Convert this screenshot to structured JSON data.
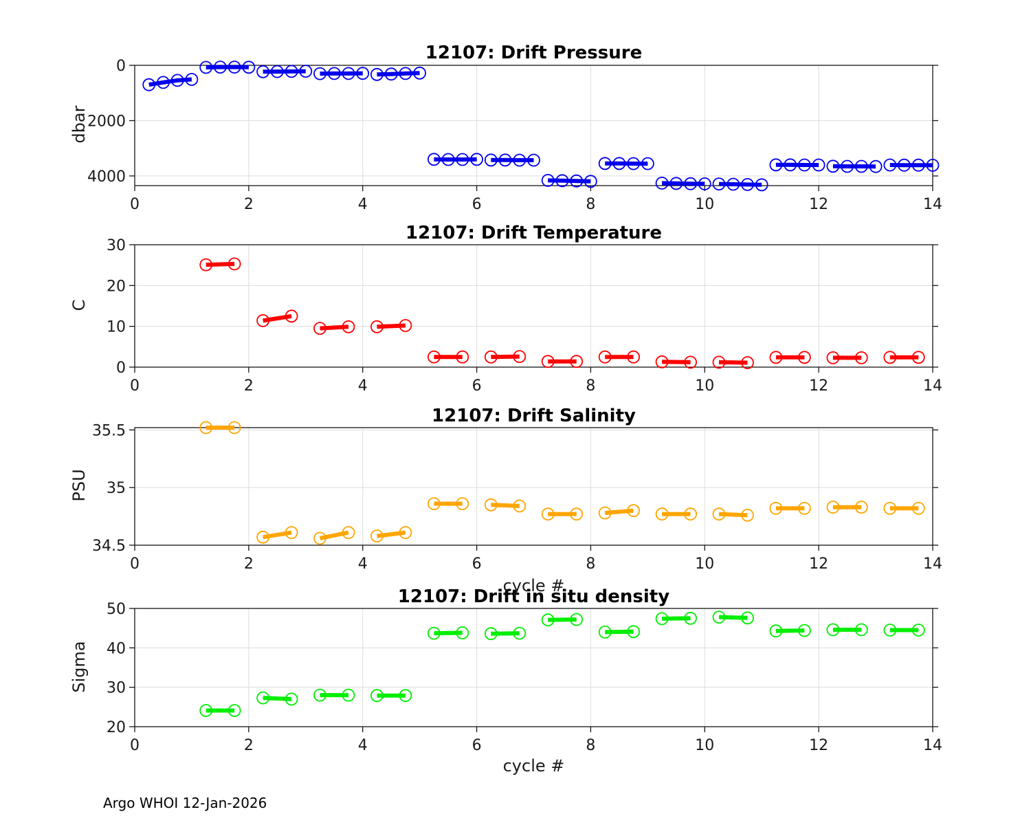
{
  "page": {
    "footer": "Argo WHOI 12-Jan-2026",
    "background": "#ffffff"
  },
  "chart_data": [
    {
      "type": "line",
      "title": "12107: Drift Pressure",
      "ylabel": "dbar",
      "xlabel": "",
      "color": "#0000EE",
      "marker": "circle",
      "grid": true,
      "xlim": [
        0,
        14
      ],
      "ylim": [
        0,
        4350
      ],
      "y_reversed": true,
      "xticks": [
        0,
        2,
        4,
        6,
        8,
        10,
        12,
        14
      ],
      "xtick_labels": [
        "0",
        "2",
        "4",
        "6",
        "8",
        "10",
        "12",
        "14"
      ],
      "yticks": [
        0,
        2000,
        4000
      ],
      "ytick_labels": [
        "0",
        "2000",
        "4000"
      ],
      "segments": [
        {
          "x": [
            0.25,
            0.5,
            0.75,
            1.0
          ],
          "y": [
            700,
            620,
            545,
            510
          ]
        },
        {
          "x": [
            1.25,
            1.5,
            1.75,
            2.0
          ],
          "y": [
            75,
            65,
            65,
            70
          ]
        },
        {
          "x": [
            2.25,
            2.5,
            2.75,
            3.0
          ],
          "y": [
            230,
            225,
            220,
            215
          ]
        },
        {
          "x": [
            3.25,
            3.5,
            3.75,
            4.0
          ],
          "y": [
            300,
            295,
            295,
            290
          ]
        },
        {
          "x": [
            4.25,
            4.5,
            4.75,
            5.0
          ],
          "y": [
            330,
            315,
            295,
            280
          ]
        },
        {
          "x": [
            5.25,
            5.5,
            5.75,
            6.0
          ],
          "y": [
            3400,
            3405,
            3405,
            3400
          ]
        },
        {
          "x": [
            6.25,
            6.5,
            6.75,
            7.0
          ],
          "y": [
            3425,
            3425,
            3430,
            3430
          ]
        },
        {
          "x": [
            7.25,
            7.5,
            7.75,
            8.0
          ],
          "y": [
            4160,
            4170,
            4180,
            4195
          ]
        },
        {
          "x": [
            8.25,
            8.5,
            8.75,
            9.0
          ],
          "y": [
            3550,
            3550,
            3555,
            3555
          ]
        },
        {
          "x": [
            9.25,
            9.5,
            9.75,
            10.0
          ],
          "y": [
            4260,
            4270,
            4280,
            4285
          ]
        },
        {
          "x": [
            10.25,
            10.5,
            10.75,
            11.0
          ],
          "y": [
            4290,
            4300,
            4310,
            4320
          ]
        },
        {
          "x": [
            11.25,
            11.5,
            11.75,
            12.0
          ],
          "y": [
            3600,
            3600,
            3605,
            3605
          ]
        },
        {
          "x": [
            12.25,
            12.5,
            12.75,
            13.0
          ],
          "y": [
            3650,
            3655,
            3655,
            3660
          ]
        },
        {
          "x": [
            13.25,
            13.5,
            13.75,
            14.0
          ],
          "y": [
            3605,
            3610,
            3610,
            3615
          ]
        }
      ]
    },
    {
      "type": "line",
      "title": "12107: Drift Temperature",
      "ylabel": "C",
      "xlabel": "",
      "color": "#FF0000",
      "marker": "circle",
      "grid": true,
      "xlim": [
        0,
        14
      ],
      "ylim": [
        0,
        30
      ],
      "y_reversed": false,
      "xticks": [
        0,
        2,
        4,
        6,
        8,
        10,
        12,
        14
      ],
      "xtick_labels": [
        "0",
        "2",
        "4",
        "6",
        "8",
        "10",
        "12",
        "14"
      ],
      "yticks": [
        0,
        10,
        20,
        30
      ],
      "ytick_labels": [
        "0",
        "10",
        "20",
        "30"
      ],
      "segments": [
        {
          "x": [
            1.25,
            1.75
          ],
          "y": [
            25.1,
            25.3
          ]
        },
        {
          "x": [
            2.25,
            2.75
          ],
          "y": [
            11.4,
            12.5
          ]
        },
        {
          "x": [
            3.25,
            3.75
          ],
          "y": [
            9.5,
            9.9
          ]
        },
        {
          "x": [
            4.25,
            4.75
          ],
          "y": [
            9.9,
            10.2
          ]
        },
        {
          "x": [
            5.25,
            5.75
          ],
          "y": [
            2.5,
            2.5
          ]
        },
        {
          "x": [
            6.25,
            6.75
          ],
          "y": [
            2.5,
            2.6
          ]
        },
        {
          "x": [
            7.25,
            7.75
          ],
          "y": [
            1.4,
            1.4
          ]
        },
        {
          "x": [
            8.25,
            8.75
          ],
          "y": [
            2.5,
            2.5
          ]
        },
        {
          "x": [
            9.25,
            9.75
          ],
          "y": [
            1.3,
            1.2
          ]
        },
        {
          "x": [
            10.25,
            10.75
          ],
          "y": [
            1.2,
            1.1
          ]
        },
        {
          "x": [
            11.25,
            11.75
          ],
          "y": [
            2.4,
            2.4
          ]
        },
        {
          "x": [
            12.25,
            12.75
          ],
          "y": [
            2.3,
            2.3
          ]
        },
        {
          "x": [
            13.25,
            13.75
          ],
          "y": [
            2.4,
            2.4
          ]
        }
      ]
    },
    {
      "type": "line",
      "title": "12107: Drift Salinity",
      "ylabel": "PSU",
      "xlabel": "cycle #",
      "color": "#FFA500",
      "marker": "circle",
      "grid": true,
      "xlim": [
        0,
        14
      ],
      "ylim": [
        34.5,
        35.52
      ],
      "y_reversed": false,
      "xticks": [
        0,
        2,
        4,
        6,
        8,
        10,
        12,
        14
      ],
      "xtick_labels": [
        "0",
        "2",
        "4",
        "6",
        "8",
        "10",
        "12",
        "14"
      ],
      "yticks": [
        34.5,
        35,
        35.5
      ],
      "ytick_labels": [
        "34.5",
        "35",
        "35.5"
      ],
      "segments": [
        {
          "x": [
            1.25,
            1.75
          ],
          "y": [
            35.52,
            35.52
          ]
        },
        {
          "x": [
            2.25,
            2.75
          ],
          "y": [
            34.57,
            34.61
          ]
        },
        {
          "x": [
            3.25,
            3.75
          ],
          "y": [
            34.56,
            34.61
          ]
        },
        {
          "x": [
            4.25,
            4.75
          ],
          "y": [
            34.58,
            34.61
          ]
        },
        {
          "x": [
            5.25,
            5.75
          ],
          "y": [
            34.86,
            34.86
          ]
        },
        {
          "x": [
            6.25,
            6.75
          ],
          "y": [
            34.85,
            34.84
          ]
        },
        {
          "x": [
            7.25,
            7.75
          ],
          "y": [
            34.77,
            34.77
          ]
        },
        {
          "x": [
            8.25,
            8.75
          ],
          "y": [
            34.78,
            34.8
          ]
        },
        {
          "x": [
            9.25,
            9.75
          ],
          "y": [
            34.77,
            34.77
          ]
        },
        {
          "x": [
            10.25,
            10.75
          ],
          "y": [
            34.77,
            34.76
          ]
        },
        {
          "x": [
            11.25,
            11.75
          ],
          "y": [
            34.82,
            34.82
          ]
        },
        {
          "x": [
            12.25,
            12.75
          ],
          "y": [
            34.83,
            34.83
          ]
        },
        {
          "x": [
            13.25,
            13.75
          ],
          "y": [
            34.82,
            34.82
          ]
        }
      ]
    },
    {
      "type": "line",
      "title": "12107: Drift in situ density",
      "ylabel": "Sigma",
      "xlabel": "cycle #",
      "color": "#00EE00",
      "marker": "circle",
      "grid": true,
      "xlim": [
        0,
        14
      ],
      "ylim": [
        20,
        50
      ],
      "y_reversed": false,
      "xticks": [
        0,
        2,
        4,
        6,
        8,
        10,
        12,
        14
      ],
      "xtick_labels": [
        "0",
        "2",
        "4",
        "6",
        "8",
        "10",
        "12",
        "14"
      ],
      "yticks": [
        20,
        30,
        40,
        50
      ],
      "ytick_labels": [
        "20",
        "30",
        "40",
        "50"
      ],
      "segments": [
        {
          "x": [
            1.25,
            1.75
          ],
          "y": [
            24.1,
            24.1
          ]
        },
        {
          "x": [
            2.25,
            2.75
          ],
          "y": [
            27.3,
            27.0
          ]
        },
        {
          "x": [
            3.25,
            3.75
          ],
          "y": [
            28.0,
            28.0
          ]
        },
        {
          "x": [
            4.25,
            4.75
          ],
          "y": [
            27.9,
            27.9
          ]
        },
        {
          "x": [
            5.25,
            5.75
          ],
          "y": [
            43.7,
            43.8
          ]
        },
        {
          "x": [
            6.25,
            6.75
          ],
          "y": [
            43.6,
            43.7
          ]
        },
        {
          "x": [
            7.25,
            7.75
          ],
          "y": [
            47.1,
            47.2
          ]
        },
        {
          "x": [
            8.25,
            8.75
          ],
          "y": [
            44.0,
            44.1
          ]
        },
        {
          "x": [
            9.25,
            9.75
          ],
          "y": [
            47.4,
            47.5
          ]
        },
        {
          "x": [
            10.25,
            10.75
          ],
          "y": [
            47.8,
            47.6
          ]
        },
        {
          "x": [
            11.25,
            11.75
          ],
          "y": [
            44.3,
            44.4
          ]
        },
        {
          "x": [
            12.25,
            12.75
          ],
          "y": [
            44.6,
            44.6
          ]
        },
        {
          "x": [
            13.25,
            13.75
          ],
          "y": [
            44.5,
            44.5
          ]
        }
      ]
    }
  ]
}
